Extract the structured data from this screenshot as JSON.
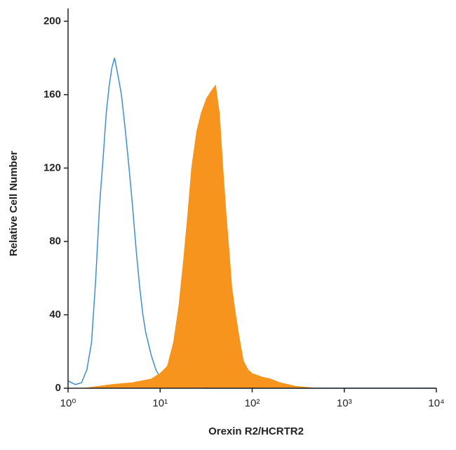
{
  "chart_data": {
    "type": "histogram-overlay",
    "x_label": "Orexin R2/HCRTR2",
    "y_label": "Relative Cell Number",
    "xlim": [
      1,
      10000
    ],
    "ylim": [
      0,
      207
    ],
    "log_x": true,
    "xticks": [
      {
        "value": 1,
        "label": "10⁰"
      },
      {
        "value": 10,
        "label": "10¹"
      },
      {
        "value": 100,
        "label": "10²"
      },
      {
        "value": 1000,
        "label": "10³"
      },
      {
        "value": 10000,
        "label": "10⁴"
      }
    ],
    "yticks": [
      0,
      40,
      80,
      120,
      160,
      200
    ],
    "series": [
      {
        "style": "line",
        "color": "#3d8fd1",
        "x": [
          1.0,
          1.2,
          1.4,
          1.6,
          1.8,
          2.0,
          2.2,
          2.4,
          2.6,
          2.8,
          3.0,
          3.2,
          3.5,
          3.8,
          4.2,
          4.6,
          5.0,
          5.5,
          6.0,
          6.5,
          7.0,
          8.0,
          9.0,
          10,
          12,
          15,
          20,
          30,
          100,
          10000
        ],
        "values": [
          4,
          2,
          3,
          10,
          25,
          60,
          100,
          125,
          150,
          165,
          175,
          180,
          170,
          160,
          140,
          120,
          100,
          75,
          55,
          40,
          30,
          18,
          10,
          6,
          4,
          2,
          1,
          0,
          0,
          0
        ]
      },
      {
        "style": "area",
        "color": "#f7941d",
        "x": [
          1.5,
          3,
          5,
          8,
          10,
          12,
          14,
          16,
          18,
          20,
          22,
          25,
          28,
          32,
          36,
          40,
          44,
          48,
          52,
          56,
          60,
          66,
          72,
          80,
          90,
          100,
          130,
          160,
          200,
          300,
          500,
          10000
        ],
        "values": [
          0,
          2,
          3,
          5,
          8,
          12,
          25,
          45,
          70,
          95,
          120,
          140,
          150,
          158,
          162,
          165,
          150,
          120,
          95,
          75,
          55,
          40,
          28,
          15,
          10,
          8,
          6,
          5,
          3,
          1,
          0,
          0
        ]
      }
    ]
  }
}
